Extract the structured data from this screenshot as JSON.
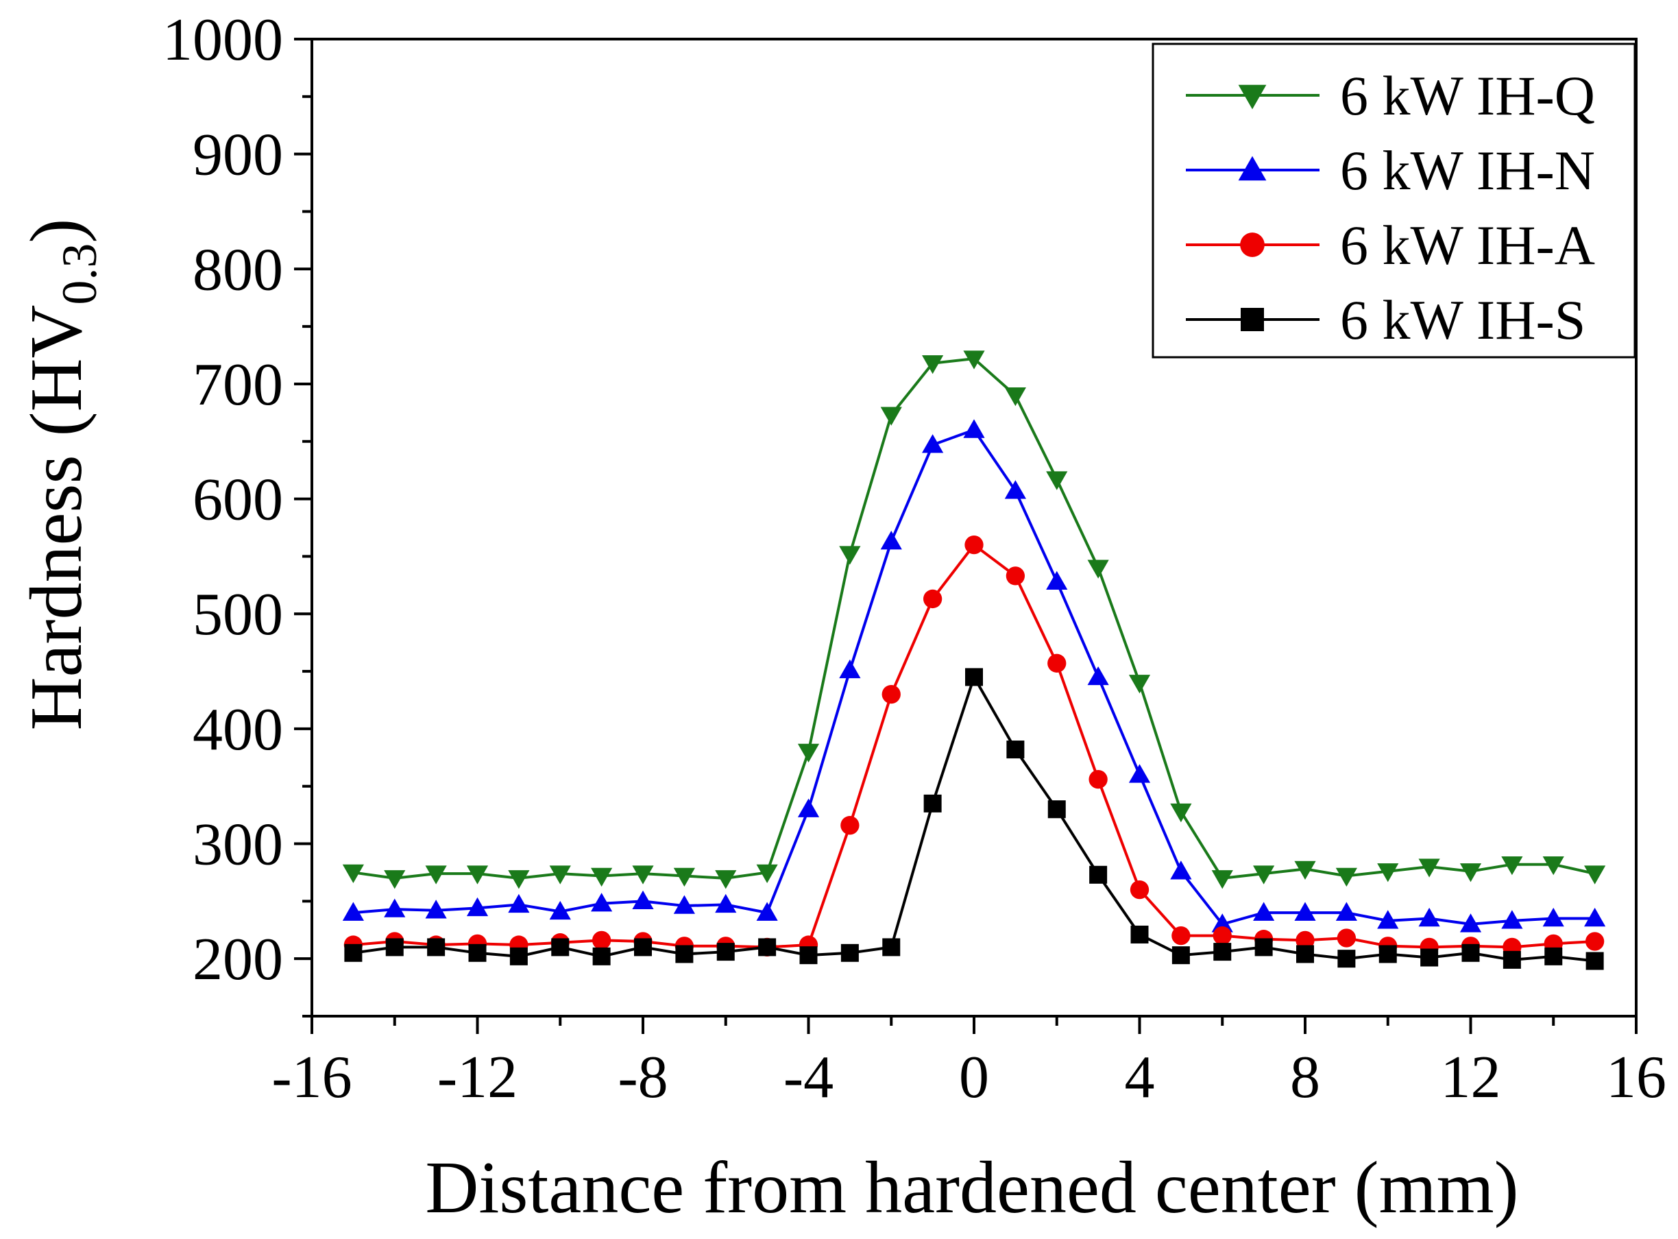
{
  "chart_data": {
    "type": "line",
    "title": "",
    "xlabel": "Distance from hardened center (mm)",
    "ylabel": {
      "main": "Hardness (HV",
      "sub": "0.3",
      "close": ")"
    },
    "xlim": [
      -16,
      16
    ],
    "ylim": [
      150,
      1000
    ],
    "x_ticks": [
      -16,
      -12,
      -8,
      -4,
      0,
      4,
      8,
      12,
      16
    ],
    "x_tick_labels": [
      "-16",
      "-12",
      "-8",
      "-4",
      "0",
      "4",
      "8",
      "12",
      "16"
    ],
    "y_ticks": [
      200,
      300,
      400,
      500,
      600,
      700,
      800,
      900,
      1000
    ],
    "y_tick_labels": [
      "200",
      "300",
      "400",
      "500",
      "600",
      "700",
      "800",
      "900",
      "1000"
    ],
    "grid": false,
    "legend_position": "top-right",
    "x": [
      -15,
      -14,
      -13,
      -12,
      -11,
      -10,
      -9,
      -8,
      -7,
      -6,
      -5,
      -4,
      -3,
      -2,
      -1,
      0,
      1,
      2,
      3,
      4,
      5,
      6,
      7,
      8,
      9,
      10,
      11,
      12,
      13,
      14,
      15
    ],
    "series": [
      {
        "name": "6 kW IH-Q",
        "color": "#1a7a1a",
        "marker": "triangle-down",
        "values": [
          275,
          270,
          274,
          274,
          270,
          274,
          272,
          274,
          272,
          270,
          275,
          380,
          552,
          673,
          718,
          722,
          690,
          617,
          540,
          440,
          328,
          270,
          274,
          278,
          272,
          276,
          280,
          276,
          282,
          282,
          274
        ]
      },
      {
        "name": "6 kW IH-N",
        "color": "#0000ee",
        "marker": "triangle-up",
        "values": [
          240,
          243,
          242,
          244,
          247,
          241,
          248,
          250,
          246,
          247,
          240,
          330,
          451,
          563,
          647,
          660,
          607,
          528,
          445,
          360,
          276,
          230,
          240,
          240,
          240,
          233,
          235,
          230,
          233,
          235,
          235
        ]
      },
      {
        "name": "6 kW IH-A",
        "color": "#ee0000",
        "marker": "circle",
        "values": [
          212,
          215,
          212,
          213,
          212,
          214,
          216,
          215,
          211,
          211,
          210,
          212,
          316,
          430,
          513,
          560,
          533,
          457,
          356,
          260,
          220,
          220,
          217,
          216,
          218,
          211,
          210,
          211,
          210,
          213,
          215
        ]
      },
      {
        "name": "6 kW IH-S",
        "color": "#000000",
        "marker": "square",
        "values": [
          205,
          210,
          210,
          205,
          202,
          210,
          202,
          210,
          204,
          206,
          210,
          203,
          205,
          210,
          335,
          445,
          382,
          330,
          273,
          221,
          203,
          206,
          210,
          204,
          200,
          204,
          201,
          205,
          199,
          202,
          198
        ]
      }
    ]
  }
}
